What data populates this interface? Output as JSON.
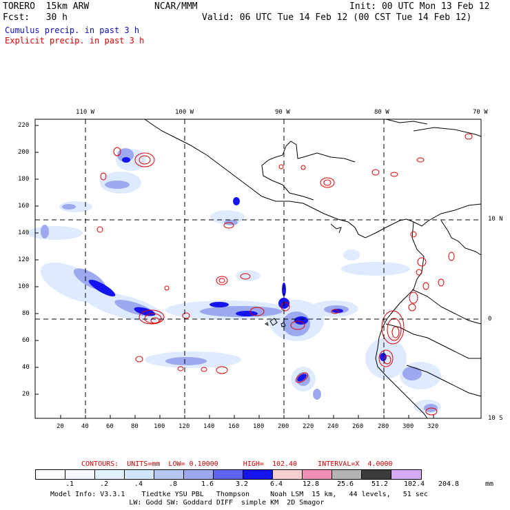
{
  "header": {
    "model_name": "TORERO  15km ARW",
    "org": "NCAR/MMM",
    "init": "Init: 00 UTC Mon 13 Feb 12",
    "forecast": "Fcst:   30 h",
    "valid": "Valid: 06 UTC Tue 14 Feb 12 (00 CST Tue 14 Feb 12)",
    "cumulus_label": "Cumulus precip. in past 3 h",
    "explicit_label": "Explicit precip. in past 3 h",
    "colors": {
      "cumulus": "#1010c0",
      "explicit": "#e00000"
    }
  },
  "map": {
    "top_lon_labels": [
      "110 W",
      "100 W",
      "90 W",
      "80 W",
      "70 W"
    ],
    "right_lat_labels": [
      "10 N",
      "0",
      "10 S"
    ],
    "y_ticks": [
      "220",
      "200",
      "180",
      "160",
      "140",
      "120",
      "100",
      "80",
      "60",
      "40",
      "20"
    ],
    "x_ticks": [
      "20",
      "40",
      "60",
      "80",
      "100",
      "120",
      "140",
      "160",
      "180",
      "200",
      "220",
      "240",
      "260",
      "280",
      "300",
      "320"
    ]
  },
  "contours": {
    "text": "CONTOURS:  UNITS=mm  LOW= 0.10000      HIGH=  102.40     INTERVAL=X  4.0000"
  },
  "legend": {
    "colors": [
      "#ffffff",
      "#f2f8ff",
      "#e2f1ff",
      "#d2e6fa",
      "#b6c7f2",
      "#9ca9ee",
      "#5e64ee",
      "#1414ee",
      "#f7cfcf",
      "#f08fb8",
      "#b4b4b4",
      "#3c3c3c",
      "#d4aaf6"
    ],
    "labels": [
      ".1",
      ".2",
      ".4",
      ".8",
      "1.6",
      "3.2",
      "6.4",
      "12.8",
      "25.6",
      "51.2",
      "102.4",
      "204.8"
    ],
    "units": "mm"
  },
  "footer": {
    "line1": "Model Info: V3.3.1    Tiedtke YSU PBL   Thompson     Noah LSM  15 km,   44 levels,   51 sec",
    "line2": "                   LW: Godd SW: Goddard DIFF  simple KM  2D Smagor"
  }
}
